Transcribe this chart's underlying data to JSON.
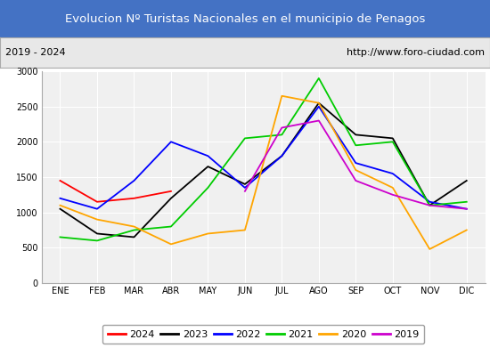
{
  "title": "Evolucion Nº Turistas Nacionales en el municipio de Penagos",
  "subtitle_left": "2019 - 2024",
  "subtitle_right": "http://www.foro-ciudad.com",
  "title_bg_color": "#4472c4",
  "title_text_color": "#ffffff",
  "subtitle_bg_color": "#e8e8e8",
  "plot_bg_color": "#f0f0f0",
  "months": [
    "ENE",
    "FEB",
    "MAR",
    "ABR",
    "MAY",
    "JUN",
    "JUL",
    "AGO",
    "SEP",
    "OCT",
    "NOV",
    "DIC"
  ],
  "ylim": [
    0,
    3000
  ],
  "yticks": [
    0,
    500,
    1000,
    1500,
    2000,
    2500,
    3000
  ],
  "series": {
    "2024": {
      "color": "#ff0000",
      "data": [
        1450,
        1150,
        1200,
        1300,
        null,
        null,
        null,
        null,
        null,
        null,
        null,
        null
      ]
    },
    "2023": {
      "color": "#000000",
      "data": [
        1050,
        700,
        650,
        1200,
        1650,
        1400,
        1800,
        2550,
        2100,
        2050,
        1100,
        1450
      ]
    },
    "2022": {
      "color": "#0000ff",
      "data": [
        1200,
        1050,
        1450,
        2000,
        1800,
        1350,
        1800,
        2500,
        1700,
        1550,
        1150,
        1050
      ]
    },
    "2021": {
      "color": "#00cc00",
      "data": [
        650,
        600,
        750,
        800,
        1350,
        2050,
        2100,
        2900,
        1950,
        2000,
        1100,
        1150
      ]
    },
    "2020": {
      "color": "#ffa500",
      "data": [
        1100,
        900,
        800,
        550,
        700,
        750,
        2650,
        2550,
        1600,
        1350,
        480,
        750
      ]
    },
    "2019": {
      "color": "#cc00cc",
      "data": [
        null,
        null,
        null,
        null,
        null,
        1300,
        2200,
        2300,
        1450,
        1250,
        1100,
        1050
      ]
    }
  }
}
